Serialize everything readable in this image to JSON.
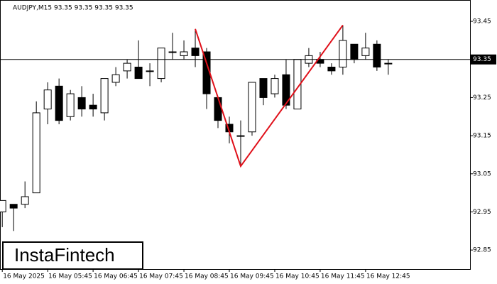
{
  "chart_data": {
    "type": "candlestick",
    "header": "AUDJPY,M15  93.35 93.35 93.35 93.35",
    "watermark": "InstaFintech",
    "series": [
      {
        "name": "AUDJPY",
        "up_color": "#ffffff",
        "down_color": "#000000",
        "open": [
          92.95,
          92.97,
          92.97,
          93.0,
          93.22,
          93.28,
          93.2,
          93.25,
          93.23,
          93.21,
          93.29,
          93.32,
          93.33,
          93.32,
          93.3,
          93.37,
          93.36,
          93.38,
          93.37,
          93.25,
          93.18,
          93.15,
          93.16,
          93.3,
          93.26,
          93.31,
          93.22,
          93.34,
          93.35,
          93.33,
          93.33,
          93.39,
          93.36,
          93.39,
          93.34
        ],
        "high": [
          92.98,
          92.97,
          93.03,
          93.24,
          93.29,
          93.3,
          93.27,
          93.28,
          93.26,
          93.3,
          93.33,
          93.35,
          93.4,
          93.34,
          93.38,
          93.42,
          93.4,
          93.43,
          93.38,
          93.25,
          93.2,
          93.19,
          93.29,
          93.3,
          93.31,
          93.35,
          93.35,
          93.38,
          93.37,
          93.34,
          93.44,
          93.39,
          93.42,
          93.4,
          93.35
        ],
        "low": [
          92.91,
          92.9,
          92.96,
          93.0,
          93.18,
          93.18,
          93.19,
          93.2,
          93.2,
          93.19,
          93.28,
          93.3,
          93.3,
          93.28,
          93.29,
          93.35,
          93.35,
          93.33,
          93.22,
          93.17,
          93.13,
          93.07,
          93.15,
          93.23,
          93.25,
          93.22,
          93.22,
          93.33,
          93.33,
          93.31,
          93.31,
          93.34,
          93.35,
          93.32,
          93.31
        ],
        "close": [
          92.98,
          92.96,
          92.99,
          93.21,
          93.27,
          93.19,
          93.26,
          93.22,
          93.22,
          93.3,
          93.31,
          93.34,
          93.3,
          93.32,
          93.38,
          93.37,
          93.37,
          93.36,
          93.26,
          93.19,
          93.16,
          93.15,
          93.29,
          93.25,
          93.3,
          93.23,
          93.35,
          93.36,
          93.34,
          93.32,
          93.4,
          93.35,
          93.38,
          93.33,
          93.34
        ]
      }
    ],
    "pattern": {
      "color": "#e0101a",
      "x": [
        17,
        21,
        30
      ],
      "values": [
        93.43,
        93.07,
        93.44
      ]
    },
    "last_price": 93.35,
    "xlim": [
      -0.2,
      41.2
    ],
    "ylim": [
      92.8,
      93.506
    ],
    "yticks": [
      92.85,
      92.95,
      93.05,
      93.15,
      93.25,
      93.35,
      93.45
    ],
    "xticks": [
      {
        "value": 0,
        "label": "16 May 2025"
      },
      {
        "value": 4,
        "label": "16 May 05:45"
      },
      {
        "value": 8,
        "label": "16 May 06:45"
      },
      {
        "value": 12,
        "label": "16 May 07:45"
      },
      {
        "value": 16,
        "label": "16 May 08:45"
      },
      {
        "value": 20,
        "label": "16 May 09:45"
      },
      {
        "value": 24,
        "label": "16 May 10:45"
      },
      {
        "value": 28,
        "label": "16 May 11:45"
      },
      {
        "value": 32,
        "label": "16 May 12:45"
      }
    ]
  }
}
